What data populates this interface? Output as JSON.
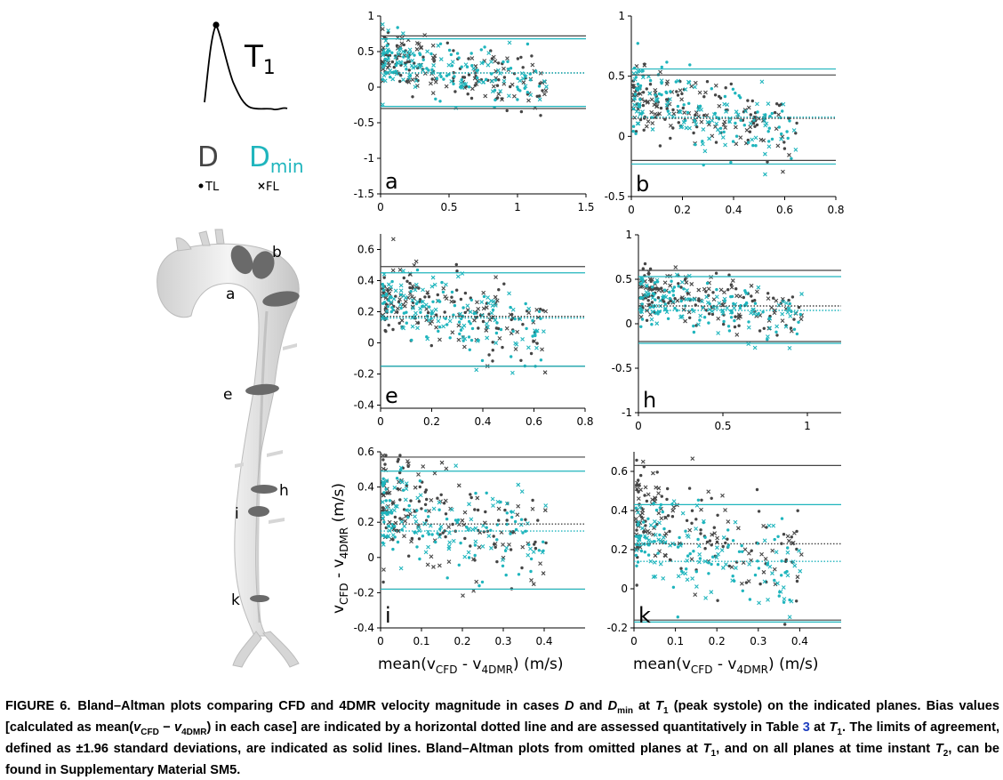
{
  "legend": {
    "time_label": "T",
    "time_sub": "1",
    "case_d": "D",
    "case_dmin": "D",
    "case_dmin_sub": "min",
    "tl_label": "TL",
    "fl_label": "FL",
    "colors": {
      "D": "#454545",
      "Dmin": "#1fb5bd"
    }
  },
  "aorta": {
    "plane_labels": [
      "a",
      "b",
      "e",
      "h",
      "i",
      "k"
    ]
  },
  "axes_labels": {
    "ylabel_main": "v",
    "ylabel_sub1": "CFD",
    "ylabel_mid": " - v",
    "ylabel_sub2": "4DMR",
    "ylabel_unit": " (m/s)",
    "xlabel_main": "mean(v",
    "xlabel_sub1": "CFD",
    "xlabel_mid": " - v",
    "xlabel_sub2": "4DMR",
    "xlabel_unit": ") (m/s)"
  },
  "chart_data": [
    {
      "type": "scatter",
      "label": "a",
      "xlim": [
        0,
        1.5
      ],
      "ylim": [
        -1.5,
        1
      ],
      "xticks": [
        "0",
        "0.5",
        "1",
        "1.5"
      ],
      "yticks": [
        "-1.5",
        "-1",
        "-0.5",
        "0",
        "0.5",
        "1"
      ],
      "series": [
        {
          "bias": 0.2,
          "loa_upper": 0.72,
          "loa_lower": -0.3
        },
        {
          "bias": 0.2,
          "loa_upper": 0.68,
          "loa_lower": -0.27
        }
      ]
    },
    {
      "type": "scatter",
      "label": "b",
      "xlim": [
        0,
        0.8
      ],
      "ylim": [
        -0.5,
        1
      ],
      "xticks": [
        "0",
        "0.2",
        "0.4",
        "0.6",
        "0.8"
      ],
      "yticks": [
        "-0.5",
        "0",
        "0.5",
        "1"
      ],
      "series": [
        {
          "bias": 0.15,
          "loa_upper": 0.51,
          "loa_lower": -0.2
        },
        {
          "bias": 0.16,
          "loa_upper": 0.56,
          "loa_lower": -0.23
        }
      ]
    },
    {
      "type": "scatter",
      "label": "e",
      "xlim": [
        0,
        0.8
      ],
      "ylim": [
        -0.42,
        0.7
      ],
      "xticks": [
        "0",
        "0.2",
        "0.4",
        "0.6",
        "0.8"
      ],
      "yticks": [
        "-0.4",
        "-0.2",
        "0",
        "0.2",
        "0.4",
        "0.6"
      ],
      "series": [
        {
          "bias": 0.17,
          "loa_upper": 0.49,
          "loa_lower": -0.15
        },
        {
          "bias": 0.16,
          "loa_upper": 0.45,
          "loa_lower": -0.15
        }
      ]
    },
    {
      "type": "scatter",
      "label": "h",
      "xlim": [
        0,
        1.2
      ],
      "ylim": [
        -1,
        1
      ],
      "xticks": [
        "0",
        "0.5",
        "1"
      ],
      "yticks": [
        "-1",
        "-0.5",
        "0",
        "0.5",
        "1"
      ],
      "series": [
        {
          "bias": 0.2,
          "loa_upper": 0.6,
          "loa_lower": -0.2
        },
        {
          "bias": 0.15,
          "loa_upper": 0.53,
          "loa_lower": -0.22
        }
      ]
    },
    {
      "type": "scatter",
      "label": "i",
      "xlim": [
        0,
        0.5
      ],
      "ylim": [
        -0.4,
        0.6
      ],
      "xticks": [
        "0",
        "0.1",
        "0.2",
        "0.3",
        "0.4"
      ],
      "yticks": [
        "-0.4",
        "-0.2",
        "0",
        "0.2",
        "0.4",
        "0.6"
      ],
      "series": [
        {
          "bias": 0.19,
          "loa_upper": 0.57,
          "loa_lower": -0.18
        },
        {
          "bias": 0.15,
          "loa_upper": 0.49,
          "loa_lower": -0.18
        }
      ]
    },
    {
      "type": "scatter",
      "label": "k",
      "xlim": [
        0,
        0.5
      ],
      "ylim": [
        -0.2,
        0.7
      ],
      "xticks": [
        "0",
        "0.1",
        "0.2",
        "0.3",
        "0.4"
      ],
      "yticks": [
        "-0.2",
        "0",
        "0.2",
        "0.4",
        "0.6"
      ],
      "series": [
        {
          "bias": 0.23,
          "loa_upper": 0.63,
          "loa_lower": -0.16
        },
        {
          "bias": 0.14,
          "loa_upper": 0.43,
          "loa_lower": -0.17
        }
      ]
    }
  ],
  "caption": {
    "label": "FIGURE 6.",
    "parts": [
      {
        "t": "Bland–Altman plots comparing CFD and 4DMR velocity magnitude in cases "
      },
      {
        "t": "D",
        "i": true
      },
      {
        "t": " and "
      },
      {
        "t": "D",
        "i": true
      },
      {
        "t": "min",
        "sub": true
      },
      {
        "t": " at "
      },
      {
        "t": "T",
        "i": true
      },
      {
        "t": "1",
        "sub": true
      },
      {
        "t": " (peak systole) on the indicated planes. Bias values [calculated as mean("
      },
      {
        "t": "v",
        "i": true
      },
      {
        "t": "CFD",
        "sub": true
      },
      {
        "t": " − "
      },
      {
        "t": "v",
        "i": true
      },
      {
        "t": "4DMR",
        "sub": true
      },
      {
        "t": ") in each case] are indicated by a horizontal dotted line and are assessed quantitatively in Table "
      },
      {
        "t": "3",
        "ref": true
      },
      {
        "t": " at "
      },
      {
        "t": "T",
        "i": true
      },
      {
        "t": "1",
        "sub": true
      },
      {
        "t": ". The limits of agreement, defined as ±1.96 standard deviations, are indicated as solid lines. Bland–Altman plots from omitted planes at "
      },
      {
        "t": "T",
        "i": true
      },
      {
        "t": "1",
        "sub": true
      },
      {
        "t": ", and on all planes at time instant "
      },
      {
        "t": "T",
        "i": true
      },
      {
        "t": "2",
        "sub": true
      },
      {
        "t": ", can be found in Supplementary Material SM5."
      }
    ]
  }
}
